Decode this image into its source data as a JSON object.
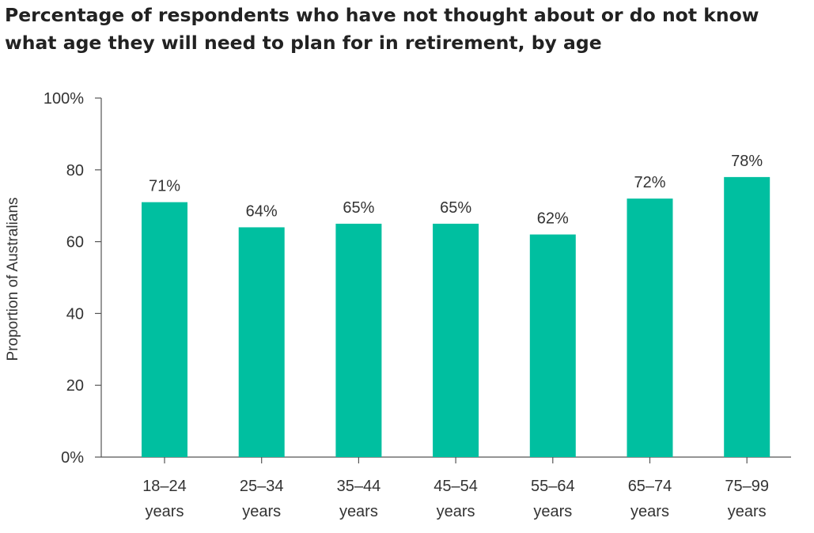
{
  "chart_data": {
    "type": "bar",
    "title_lines": [
      "Percentage of respondents who have not thought about or do not know",
      "what age they will need to plan for in retirement, by age"
    ],
    "xlabel": "",
    "ylabel": "Proportion of Australians",
    "categories": [
      [
        "18–24",
        "years"
      ],
      [
        "25–34",
        "years"
      ],
      [
        "35–44",
        "years"
      ],
      [
        "45–54",
        "years"
      ],
      [
        "55–64",
        "years"
      ],
      [
        "65–74",
        "years"
      ],
      [
        "75–99",
        "years"
      ]
    ],
    "values": [
      71,
      64,
      65,
      65,
      62,
      72,
      78
    ],
    "value_labels": [
      "71%",
      "64%",
      "65%",
      "65%",
      "62%",
      "72%",
      "78%"
    ],
    "ylim": [
      0,
      100
    ],
    "yticks": [
      0,
      20,
      40,
      60,
      80,
      100
    ],
    "ytick_labels": [
      "0%",
      "20",
      "40",
      "60",
      "80",
      "100%"
    ],
    "bar_color": "#00bfa0",
    "grid": false
  }
}
